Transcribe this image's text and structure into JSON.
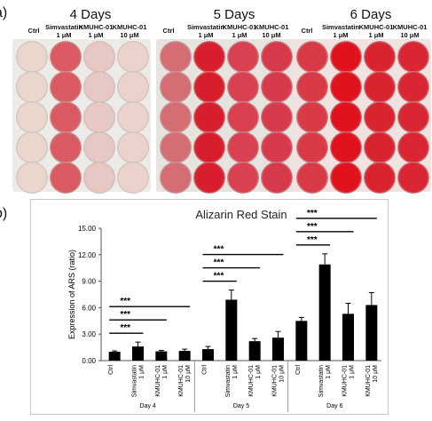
{
  "panels": {
    "a": "a)",
    "b": "b)"
  },
  "plates": [
    {
      "day": "4 Days",
      "headers": [
        "Ctrl",
        "Simvastatin\n1 μM",
        "KMUHC-01\n1 μM",
        "KMUHC-01\n10 μM"
      ],
      "bg": "#ecebe8",
      "wellColors": [
        "#ead6cc",
        "#d95a62",
        "#e8c8c4",
        "#ecd2cc"
      ]
    },
    {
      "day": "5 Days",
      "headers": [
        "Ctrl",
        "Simvastatin\n1 μM",
        "KMUHC-01\n1 μM",
        "KMUHC-01\n10 μM"
      ],
      "bg": "#e7e3df",
      "wellColors": [
        "#d56e74",
        "#d81e2c",
        "#d94050",
        "#d73a4a"
      ]
    },
    {
      "day": "6 Days",
      "headers": [
        "Ctrl",
        "Simvastatin\n1 μM",
        "KMUHC-01\n1 μM",
        "KMUHC-01\n10 μM"
      ],
      "bg": "#f0e2e0",
      "wellColors": [
        "#d83a46",
        "#e0121e",
        "#d92430",
        "#da2532"
      ]
    }
  ],
  "chart_data": {
    "type": "bar",
    "title": "Alizarin Red Stain",
    "ylabel": "Expression of ARS (ratio)",
    "ylim": [
      0,
      15
    ],
    "yticks": [
      "0.00",
      "3.00",
      "6.00",
      "9.00",
      "12.00",
      "15.00"
    ],
    "groups": [
      {
        "name": "Day 4",
        "categories": [
          "Ctrl",
          "Simvastatin\n1 μM",
          "KMUHC-01\n1 μM",
          "KMUHC-01\n10 μM"
        ],
        "values": [
          1.0,
          1.6,
          1.05,
          1.1
        ],
        "errors": [
          0.1,
          0.5,
          0.1,
          0.2
        ]
      },
      {
        "name": "Day 5",
        "categories": [
          "Ctrl",
          "Simvastatin\n1 μM",
          "KMUHC-01\n1 μM",
          "KMUHC-01\n10 μM"
        ],
        "values": [
          1.3,
          6.9,
          2.2,
          2.6
        ],
        "errors": [
          0.3,
          1.1,
          0.3,
          0.7
        ]
      },
      {
        "name": "Day 6",
        "categories": [
          "Ctrl",
          "Simvastatin\n1 μM",
          "KMUHC-01\n1 μM",
          "KMUHC-01\n10 μM"
        ],
        "values": [
          4.5,
          10.9,
          5.3,
          6.3
        ],
        "errors": [
          0.4,
          1.2,
          1.2,
          1.4
        ]
      }
    ],
    "significance": [
      {
        "group": 0,
        "from": 0,
        "to": 1,
        "label": "***"
      },
      {
        "group": 0,
        "from": 0,
        "to": 2,
        "label": "***"
      },
      {
        "group": 0,
        "from": 0,
        "to": 3,
        "label": "***"
      },
      {
        "group": 1,
        "from": 0,
        "to": 1,
        "label": "***"
      },
      {
        "group": 1,
        "from": 0,
        "to": 2,
        "label": "***"
      },
      {
        "group": 1,
        "from": 0,
        "to": 3,
        "label": "***"
      },
      {
        "group": 2,
        "from": 0,
        "to": 1,
        "label": "***"
      },
      {
        "group": 2,
        "from": 0,
        "to": 2,
        "label": "***"
      },
      {
        "group": 2,
        "from": 0,
        "to": 3,
        "label": "***"
      }
    ],
    "bar_color": "#000000",
    "grid": false
  }
}
